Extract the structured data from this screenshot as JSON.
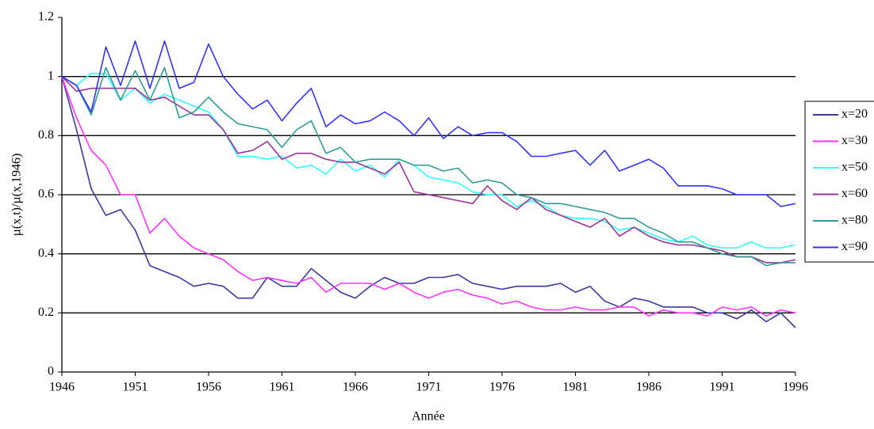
{
  "chart_data": {
    "type": "line",
    "x_label": "Année",
    "y_label": "µ(x,t)/µ(x,1946)",
    "x": [
      1946,
      1947,
      1948,
      1949,
      1950,
      1951,
      1952,
      1953,
      1954,
      1955,
      1956,
      1957,
      1958,
      1959,
      1960,
      1961,
      1962,
      1963,
      1964,
      1965,
      1966,
      1967,
      1968,
      1969,
      1970,
      1971,
      1972,
      1973,
      1974,
      1975,
      1976,
      1977,
      1978,
      1979,
      1980,
      1981,
      1982,
      1983,
      1984,
      1985,
      1986,
      1987,
      1988,
      1989,
      1990,
      1991,
      1992,
      1993,
      1994,
      1995,
      1996
    ],
    "xlim": [
      1946,
      1996
    ],
    "xticks": [
      1946,
      1951,
      1956,
      1961,
      1966,
      1971,
      1976,
      1981,
      1986,
      1991,
      1996
    ],
    "ylim": [
      0,
      1.2
    ],
    "yticks": [
      0,
      0.2,
      0.4,
      0.6,
      0.8,
      1,
      1.2
    ],
    "grid": true,
    "legend": "right",
    "series": [
      {
        "name": "x=20",
        "color": "#3a3a9c",
        "values": [
          1.0,
          0.82,
          0.62,
          0.53,
          0.55,
          0.48,
          0.36,
          0.34,
          0.32,
          0.29,
          0.3,
          0.29,
          0.25,
          0.25,
          0.32,
          0.29,
          0.29,
          0.35,
          0.31,
          0.27,
          0.25,
          0.29,
          0.32,
          0.3,
          0.3,
          0.32,
          0.32,
          0.33,
          0.3,
          0.29,
          0.28,
          0.29,
          0.29,
          0.29,
          0.3,
          0.27,
          0.29,
          0.24,
          0.22,
          0.25,
          0.24,
          0.22,
          0.22,
          0.22,
          0.2,
          0.2,
          0.18,
          0.21,
          0.17,
          0.2,
          0.15
        ]
      },
      {
        "name": "x=30",
        "color": "#ff33ff",
        "values": [
          1.0,
          0.86,
          0.75,
          0.7,
          0.6,
          0.6,
          0.47,
          0.52,
          0.46,
          0.42,
          0.4,
          0.38,
          0.34,
          0.31,
          0.32,
          0.31,
          0.3,
          0.32,
          0.27,
          0.3,
          0.3,
          0.3,
          0.28,
          0.3,
          0.27,
          0.25,
          0.27,
          0.28,
          0.26,
          0.25,
          0.23,
          0.24,
          0.22,
          0.21,
          0.21,
          0.22,
          0.21,
          0.21,
          0.22,
          0.22,
          0.19,
          0.21,
          0.2,
          0.2,
          0.19,
          0.22,
          0.21,
          0.22,
          0.19,
          0.21,
          0.2
        ]
      },
      {
        "name": "x=50",
        "color": "#33ffff",
        "values": [
          1.0,
          0.97,
          1.01,
          1.01,
          0.92,
          0.96,
          0.91,
          0.94,
          0.92,
          0.9,
          0.88,
          0.82,
          0.73,
          0.73,
          0.72,
          0.73,
          0.69,
          0.7,
          0.67,
          0.72,
          0.68,
          0.7,
          0.66,
          0.72,
          0.7,
          0.66,
          0.65,
          0.64,
          0.61,
          0.6,
          0.6,
          0.56,
          0.58,
          0.56,
          0.53,
          0.52,
          0.52,
          0.51,
          0.48,
          0.49,
          0.47,
          0.45,
          0.44,
          0.46,
          0.43,
          0.42,
          0.42,
          0.44,
          0.42,
          0.42,
          0.43
        ]
      },
      {
        "name": "x=60",
        "color": "#993399",
        "values": [
          1.0,
          0.95,
          0.96,
          0.96,
          0.96,
          0.96,
          0.92,
          0.93,
          0.9,
          0.87,
          0.87,
          0.82,
          0.74,
          0.75,
          0.78,
          0.72,
          0.74,
          0.74,
          0.72,
          0.71,
          0.71,
          0.69,
          0.67,
          0.71,
          0.61,
          0.6,
          0.59,
          0.58,
          0.57,
          0.63,
          0.58,
          0.55,
          0.59,
          0.55,
          0.53,
          0.51,
          0.49,
          0.52,
          0.46,
          0.49,
          0.46,
          0.44,
          0.43,
          0.43,
          0.42,
          0.41,
          0.39,
          0.39,
          0.37,
          0.37,
          0.38
        ]
      },
      {
        "name": "x=80",
        "color": "#339999",
        "values": [
          1.0,
          0.97,
          0.87,
          1.03,
          0.92,
          1.02,
          0.92,
          1.03,
          0.86,
          0.88,
          0.93,
          0.88,
          0.84,
          0.83,
          0.82,
          0.76,
          0.82,
          0.85,
          0.74,
          0.76,
          0.71,
          0.72,
          0.72,
          0.72,
          0.7,
          0.7,
          0.68,
          0.69,
          0.64,
          0.65,
          0.64,
          0.6,
          0.59,
          0.57,
          0.57,
          0.56,
          0.55,
          0.54,
          0.52,
          0.52,
          0.49,
          0.47,
          0.44,
          0.44,
          0.42,
          0.4,
          0.39,
          0.39,
          0.36,
          0.37,
          0.37
        ]
      },
      {
        "name": "x=90",
        "color": "#3333ff",
        "values": [
          1.0,
          0.97,
          0.88,
          1.1,
          0.97,
          1.12,
          0.96,
          1.12,
          0.96,
          0.98,
          1.11,
          1.0,
          0.94,
          0.89,
          0.92,
          0.85,
          0.91,
          0.96,
          0.83,
          0.87,
          0.84,
          0.85,
          0.88,
          0.85,
          0.8,
          0.86,
          0.79,
          0.83,
          0.8,
          0.81,
          0.81,
          0.78,
          0.73,
          0.73,
          0.74,
          0.75,
          0.7,
          0.75,
          0.68,
          0.7,
          0.72,
          0.69,
          0.63,
          0.63,
          0.63,
          0.62,
          0.6,
          0.6,
          0.6,
          0.56,
          0.57
        ]
      }
    ]
  }
}
